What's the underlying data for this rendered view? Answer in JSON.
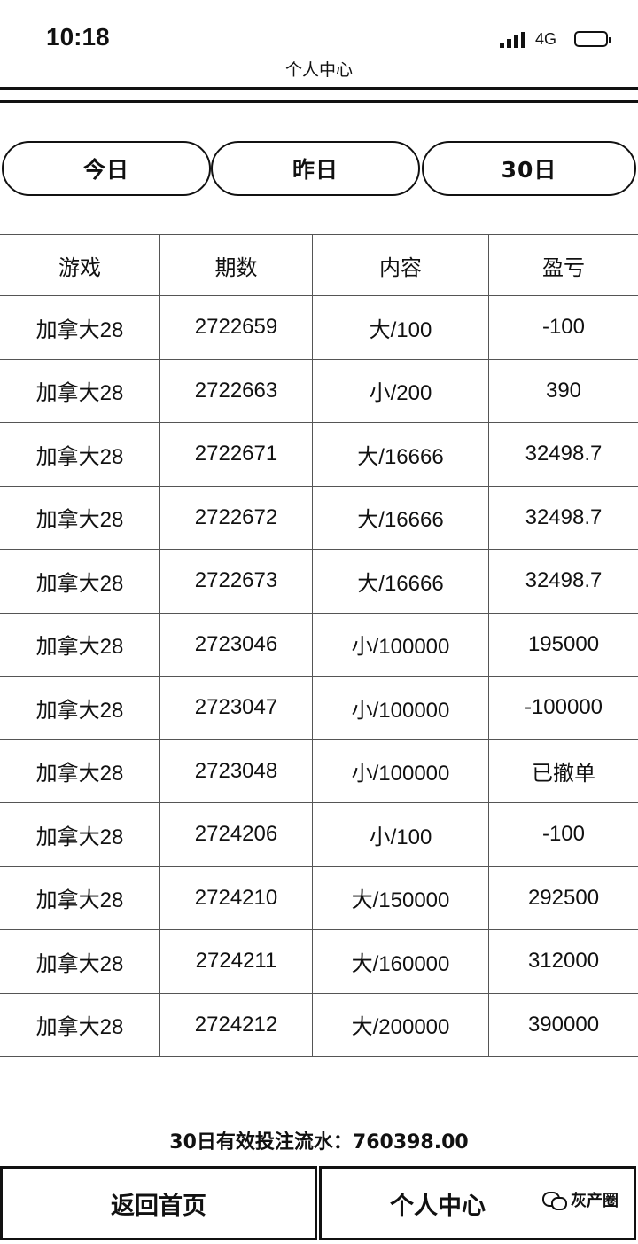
{
  "status_bar": {
    "time": "10:18",
    "network": "4G"
  },
  "header": {
    "title": "个人中心"
  },
  "tabs": [
    {
      "label": "今日"
    },
    {
      "label": "昨日"
    },
    {
      "label": "30日"
    }
  ],
  "table": {
    "columns": [
      "游戏",
      "期数",
      "内容",
      "盈亏"
    ],
    "rows": [
      [
        "加拿大28",
        "2722659",
        "大/100",
        "-100"
      ],
      [
        "加拿大28",
        "2722663",
        "小/200",
        "390"
      ],
      [
        "加拿大28",
        "2722671",
        "大/16666",
        "32498.7"
      ],
      [
        "加拿大28",
        "2722672",
        "大/16666",
        "32498.7"
      ],
      [
        "加拿大28",
        "2722673",
        "大/16666",
        "32498.7"
      ],
      [
        "加拿大28",
        "2723046",
        "小/100000",
        "195000"
      ],
      [
        "加拿大28",
        "2723047",
        "小/100000",
        "-100000"
      ],
      [
        "加拿大28",
        "2723048",
        "小/100000",
        "已撤单"
      ],
      [
        "加拿大28",
        "2724206",
        "小/100",
        "-100"
      ],
      [
        "加拿大28",
        "2724210",
        "大/150000",
        "292500"
      ],
      [
        "加拿大28",
        "2724211",
        "大/160000",
        "312000"
      ],
      [
        "加拿大28",
        "2724212",
        "大/200000",
        "390000"
      ]
    ]
  },
  "summary": {
    "label": "30日有效投注流水：",
    "value": "760398.00"
  },
  "bottom_nav": {
    "home_label": "返回首页",
    "profile_label": "个人中心"
  },
  "watermark": {
    "text": "灰产圈"
  }
}
